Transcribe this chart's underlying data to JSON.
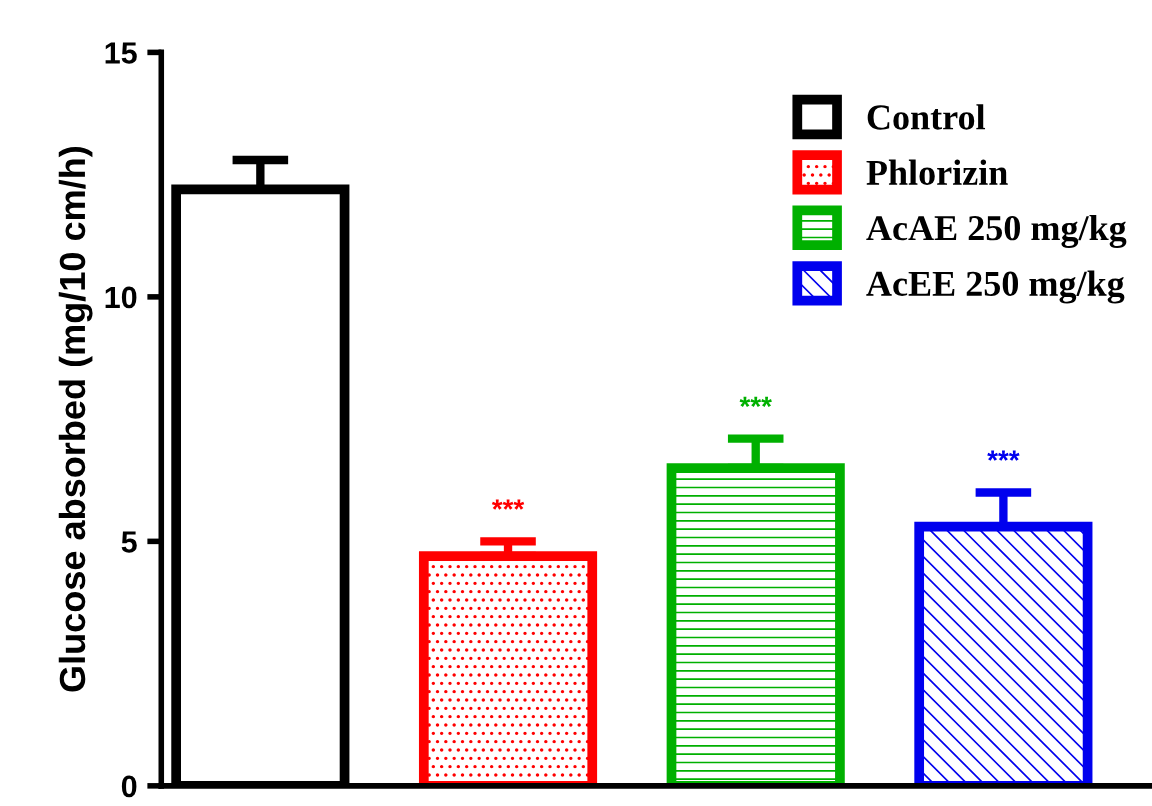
{
  "chart_data": {
    "type": "bar",
    "ylabel": "Glucose absorbed (mg/10 cm/h)",
    "categories": [
      null
    ],
    "series": [
      {
        "name": "Control",
        "color": "#000000",
        "values": [
          12.2
        ],
        "errors": [
          [
            12.2,
            12.8
          ]
        ]
      },
      {
        "name": "Phlorizin",
        "color": "#ff0000",
        "values": [
          4.7
        ],
        "errors": [
          [
            4.7,
            5.0
          ]
        ]
      },
      {
        "name": "AcAE 250 mg/kg",
        "color": "#00b000",
        "values": [
          6.5
        ],
        "errors": [
          [
            6.5,
            7.1
          ]
        ]
      },
      {
        "name": "AcEE 250 mg/kg",
        "color": "#0000ee",
        "values": [
          5.3
        ],
        "errors": [
          [
            5.3,
            6.0
          ]
        ]
      }
    ],
    "annotations": [
      "***",
      "***",
      "***"
    ],
    "ylim": [
      0,
      15
    ],
    "yticks": [
      0,
      5,
      10,
      15
    ],
    "tick_labels": "y",
    "grid": false,
    "legend": "top right"
  }
}
